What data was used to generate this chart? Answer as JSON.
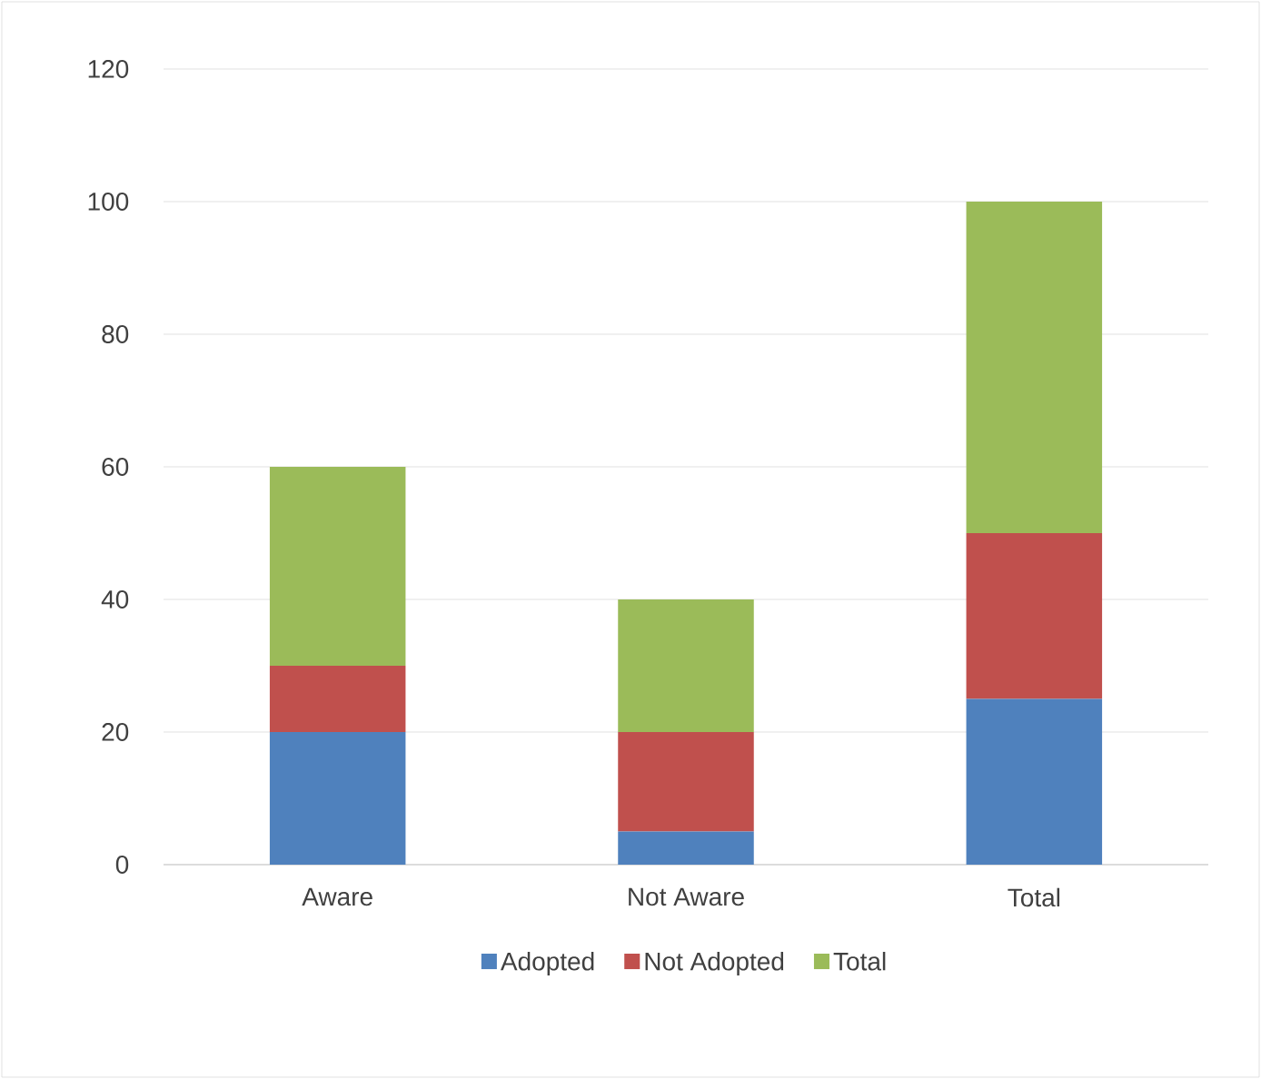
{
  "chart_data": {
    "type": "bar",
    "stacked": true,
    "categories": [
      "Aware",
      "Not Aware",
      "Total"
    ],
    "series": [
      {
        "name": "Adopted",
        "color": "#4f81bd",
        "values": [
          20,
          5,
          25
        ]
      },
      {
        "name": "Not Adopted",
        "color": "#c0504d",
        "values": [
          10,
          15,
          25
        ]
      },
      {
        "name": "Total",
        "color": "#9bbb59",
        "values": [
          30,
          20,
          50
        ]
      }
    ],
    "ylim": [
      0,
      120
    ],
    "yticks": [
      0,
      20,
      40,
      60,
      80,
      100,
      120
    ],
    "grid": "y",
    "legend": "bottom"
  }
}
